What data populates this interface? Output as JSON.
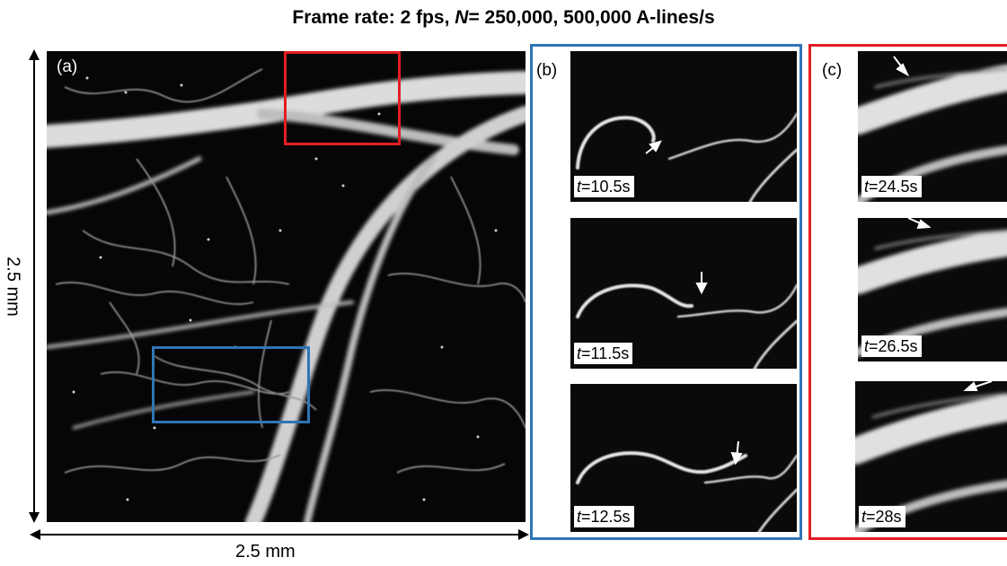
{
  "title": {
    "prefix": "Frame rate: 2 fps, ",
    "n_symbol": "N",
    "suffix": "= 250,000, 500,000 A-lines/s"
  },
  "panels": {
    "a": {
      "label": "(a)"
    },
    "b": {
      "label": "(b)",
      "frames": [
        {
          "t_symbol": "t",
          "time": "=10.5s"
        },
        {
          "t_symbol": "t",
          "time": "=11.5s"
        },
        {
          "t_symbol": "t",
          "time": "=12.5s"
        }
      ]
    },
    "c": {
      "label": "(c)",
      "frames": [
        {
          "t_symbol": "t",
          "time": "=24.5s"
        },
        {
          "t_symbol": "t",
          "time": "=26.5s"
        },
        {
          "t_symbol": "t",
          "time": "=28s"
        }
      ]
    }
  },
  "scale": {
    "horizontal": "2.5 mm",
    "vertical": "2.5 mm"
  },
  "colors": {
    "blue_box": "#2e75b6",
    "red_box": "#e31e24"
  }
}
